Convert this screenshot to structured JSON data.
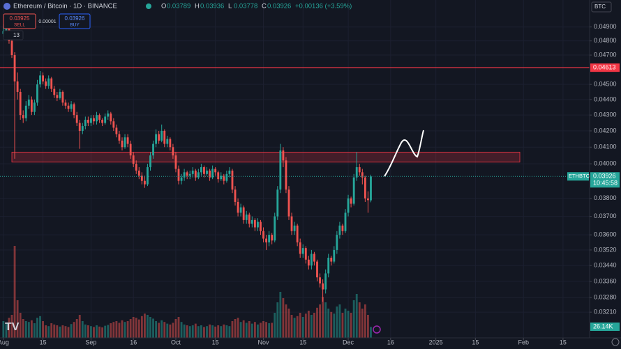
{
  "header": {
    "symbol": "Ethereum / Bitcoin · 1D · BINANCE",
    "ohlc": [
      {
        "key": "O",
        "value": "0.03789"
      },
      {
        "key": "H",
        "value": "0.03936"
      },
      {
        "key": "L",
        "value": "0.03778"
      },
      {
        "key": "C",
        "value": "0.03926"
      }
    ],
    "change": "+0.00136 (+3.59%)",
    "sell_price": "0.03925",
    "sell": "SELL",
    "spread": "0.00001",
    "buy_price": "0.03926",
    "buy": "BUY",
    "indicators": "13",
    "currency": "BTC",
    "ticker": "ETHBTC",
    "countdown": "10:45:58"
  },
  "chart_data": {
    "type": "candlestick",
    "log_scale": true,
    "grid": true,
    "up_color": "#26a69a",
    "down_color": "#ef5350",
    "ylim": [
      0.0309,
      0.051
    ],
    "yticks": [
      {
        "value": 0.049,
        "label": "0.04900"
      },
      {
        "value": 0.048,
        "label": "0.04800"
      },
      {
        "value": 0.047,
        "label": "0.04700"
      },
      {
        "value": 0.045,
        "label": "0.04500"
      },
      {
        "value": 0.044,
        "label": "0.04400"
      },
      {
        "value": 0.043,
        "label": "0.04300"
      },
      {
        "value": 0.042,
        "label": "0.04200"
      },
      {
        "value": 0.041,
        "label": "0.04100"
      },
      {
        "value": 0.04,
        "label": "0.04000"
      },
      {
        "value": 0.038,
        "label": "0.03800"
      },
      {
        "value": 0.037,
        "label": "0.03700"
      },
      {
        "value": 0.036,
        "label": "0.03600"
      },
      {
        "value": 0.0352,
        "label": "0.03520"
      },
      {
        "value": 0.0344,
        "label": "0.03440"
      },
      {
        "value": 0.0336,
        "label": "0.03360"
      },
      {
        "value": 0.0328,
        "label": "0.03280"
      },
      {
        "value": 0.0321,
        "label": "0.03210"
      }
    ],
    "xlim": [
      -1.2,
      207.4
    ],
    "xticks": [
      {
        "value": 0,
        "label": "Aug"
      },
      {
        "value": 14,
        "label": "15"
      },
      {
        "value": 31,
        "label": "Sep"
      },
      {
        "value": 46,
        "label": "16"
      },
      {
        "value": 61,
        "label": "Oct"
      },
      {
        "value": 75,
        "label": "15"
      },
      {
        "value": 92,
        "label": "Nov"
      },
      {
        "value": 106,
        "label": "15"
      },
      {
        "value": 122,
        "label": "Dec"
      },
      {
        "value": 137,
        "label": "16"
      },
      {
        "value": 153,
        "label": "2025"
      },
      {
        "value": 167,
        "label": "15"
      },
      {
        "value": 184,
        "label": "Feb"
      },
      {
        "value": 198,
        "label": "15"
      }
    ],
    "resistance_line": 0.04613,
    "resistance_color": "#f23645",
    "zone": [
      0.0401,
      0.0407
    ],
    "last_price": 0.03926,
    "candles": [
      [
        0.0485,
        0.0492,
        0.0483,
        0.0487
      ],
      [
        0.0487,
        0.0493,
        0.0485,
        0.049
      ],
      [
        0.049,
        0.0492,
        0.0478,
        0.048
      ],
      [
        0.048,
        0.0482,
        0.0468,
        0.047
      ],
      [
        0.047,
        0.0472,
        0.0403,
        0.0452
      ],
      [
        0.0452,
        0.0458,
        0.044,
        0.0445
      ],
      [
        0.0445,
        0.0447,
        0.0427,
        0.043
      ],
      [
        0.043,
        0.0433,
        0.0425,
        0.0428
      ],
      [
        0.0428,
        0.0439,
        0.0426,
        0.0436
      ],
      [
        0.0436,
        0.0443,
        0.0434,
        0.044
      ],
      [
        0.044,
        0.0442,
        0.043,
        0.0432
      ],
      [
        0.0432,
        0.044,
        0.043,
        0.0438
      ],
      [
        0.0438,
        0.0453,
        0.0436,
        0.045
      ],
      [
        0.045,
        0.0459,
        0.0448,
        0.0456
      ],
      [
        0.0456,
        0.0458,
        0.045,
        0.0452
      ],
      [
        0.0452,
        0.0454,
        0.0447,
        0.0449
      ],
      [
        0.0449,
        0.0456,
        0.0447,
        0.0454
      ],
      [
        0.0454,
        0.0455,
        0.0445,
        0.0447
      ],
      [
        0.0447,
        0.0449,
        0.0441,
        0.0443
      ],
      [
        0.0443,
        0.0445,
        0.0439,
        0.0441
      ],
      [
        0.0441,
        0.0447,
        0.044,
        0.0445
      ],
      [
        0.0445,
        0.0446,
        0.0436,
        0.0438
      ],
      [
        0.0438,
        0.044,
        0.0434,
        0.0436
      ],
      [
        0.0436,
        0.0438,
        0.0432,
        0.0434
      ],
      [
        0.0434,
        0.0439,
        0.0432,
        0.0437
      ],
      [
        0.0437,
        0.0438,
        0.0428,
        0.043
      ],
      [
        0.043,
        0.0432,
        0.0423,
        0.0425
      ],
      [
        0.0425,
        0.0427,
        0.0409,
        0.042
      ],
      [
        0.042,
        0.0425,
        0.0418,
        0.0423
      ],
      [
        0.0423,
        0.0429,
        0.0421,
        0.0427
      ],
      [
        0.0427,
        0.0429,
        0.0423,
        0.0425
      ],
      [
        0.0425,
        0.043,
        0.0423,
        0.0428
      ],
      [
        0.0428,
        0.043,
        0.0424,
        0.0426
      ],
      [
        0.0426,
        0.0432,
        0.0424,
        0.043
      ],
      [
        0.043,
        0.0431,
        0.0425,
        0.0427
      ],
      [
        0.0427,
        0.0428,
        0.0423,
        0.0425
      ],
      [
        0.0425,
        0.0431,
        0.0424,
        0.0429
      ],
      [
        0.0429,
        0.0433,
        0.0427,
        0.0431
      ],
      [
        0.0431,
        0.0432,
        0.0424,
        0.0426
      ],
      [
        0.0426,
        0.0428,
        0.042,
        0.0422
      ],
      [
        0.0422,
        0.0424,
        0.0416,
        0.0418
      ],
      [
        0.0418,
        0.042,
        0.0412,
        0.0414
      ],
      [
        0.0414,
        0.0416,
        0.0408,
        0.041
      ],
      [
        0.041,
        0.0418,
        0.0409,
        0.0416
      ],
      [
        0.0416,
        0.0418,
        0.041,
        0.0412
      ],
      [
        0.0412,
        0.0414,
        0.0403,
        0.0405
      ],
      [
        0.0405,
        0.0407,
        0.0398,
        0.04
      ],
      [
        0.04,
        0.0402,
        0.0394,
        0.0396
      ],
      [
        0.0396,
        0.0398,
        0.0391,
        0.0393
      ],
      [
        0.0393,
        0.0395,
        0.0388,
        0.039
      ],
      [
        0.039,
        0.0393,
        0.0386,
        0.0388
      ],
      [
        0.0388,
        0.04,
        0.0387,
        0.0398
      ],
      [
        0.0398,
        0.0407,
        0.0396,
        0.0405
      ],
      [
        0.0405,
        0.0414,
        0.0403,
        0.0412
      ],
      [
        0.0412,
        0.0421,
        0.041,
        0.0418
      ],
      [
        0.0418,
        0.042,
        0.0412,
        0.0414
      ],
      [
        0.0414,
        0.0424,
        0.0413,
        0.042
      ],
      [
        0.042,
        0.0421,
        0.041,
        0.0412
      ],
      [
        0.0412,
        0.0417,
        0.041,
        0.0415
      ],
      [
        0.0415,
        0.0416,
        0.0408,
        0.041
      ],
      [
        0.041,
        0.0412,
        0.0403,
        0.0405
      ],
      [
        0.0405,
        0.0407,
        0.0395,
        0.0397
      ],
      [
        0.0397,
        0.0399,
        0.0388,
        0.039
      ],
      [
        0.039,
        0.0394,
        0.0388,
        0.0392
      ],
      [
        0.0392,
        0.0397,
        0.039,
        0.0395
      ],
      [
        0.0395,
        0.0396,
        0.0391,
        0.0393
      ],
      [
        0.0393,
        0.0396,
        0.0391,
        0.0394
      ],
      [
        0.0394,
        0.0398,
        0.0392,
        0.0396
      ],
      [
        0.0396,
        0.0397,
        0.039,
        0.0392
      ],
      [
        0.0392,
        0.0397,
        0.0391,
        0.0395
      ],
      [
        0.0395,
        0.04,
        0.0393,
        0.0398
      ],
      [
        0.0398,
        0.0399,
        0.0392,
        0.0394
      ],
      [
        0.0394,
        0.0398,
        0.0393,
        0.0396
      ],
      [
        0.0396,
        0.0397,
        0.039,
        0.0392
      ],
      [
        0.0392,
        0.0399,
        0.0391,
        0.0397
      ],
      [
        0.0397,
        0.0398,
        0.0393,
        0.0395
      ],
      [
        0.0395,
        0.0396,
        0.0389,
        0.0391
      ],
      [
        0.0391,
        0.0395,
        0.039,
        0.0393
      ],
      [
        0.0393,
        0.0394,
        0.0388,
        0.039
      ],
      [
        0.039,
        0.0396,
        0.0389,
        0.0394
      ],
      [
        0.0394,
        0.0398,
        0.0392,
        0.0396
      ],
      [
        0.0396,
        0.0397,
        0.0383,
        0.0385
      ],
      [
        0.0385,
        0.0387,
        0.0376,
        0.0378
      ],
      [
        0.0378,
        0.038,
        0.037,
        0.0372
      ],
      [
        0.0372,
        0.0377,
        0.037,
        0.0375
      ],
      [
        0.0375,
        0.0376,
        0.0366,
        0.0368
      ],
      [
        0.0368,
        0.0373,
        0.0366,
        0.0371
      ],
      [
        0.0371,
        0.0372,
        0.0364,
        0.0366
      ],
      [
        0.0366,
        0.037,
        0.0364,
        0.0368
      ],
      [
        0.0368,
        0.0369,
        0.0362,
        0.0364
      ],
      [
        0.0364,
        0.0369,
        0.0362,
        0.0367
      ],
      [
        0.0367,
        0.0368,
        0.036,
        0.0362
      ],
      [
        0.0362,
        0.0364,
        0.0356,
        0.0358
      ],
      [
        0.0358,
        0.036,
        0.0352,
        0.0356
      ],
      [
        0.0356,
        0.0362,
        0.0354,
        0.036
      ],
      [
        0.036,
        0.0361,
        0.0355,
        0.0357
      ],
      [
        0.0357,
        0.0372,
        0.0356,
        0.037
      ],
      [
        0.037,
        0.0387,
        0.0368,
        0.0385
      ],
      [
        0.0385,
        0.0412,
        0.0383,
        0.0408
      ],
      [
        0.0408,
        0.041,
        0.0398,
        0.0402
      ],
      [
        0.0402,
        0.0404,
        0.0383,
        0.0385
      ],
      [
        0.0385,
        0.0387,
        0.0368,
        0.037
      ],
      [
        0.037,
        0.0372,
        0.036,
        0.0362
      ],
      [
        0.0362,
        0.0367,
        0.036,
        0.0365
      ],
      [
        0.0365,
        0.0366,
        0.0354,
        0.0356
      ],
      [
        0.0356,
        0.0358,
        0.0348,
        0.035
      ],
      [
        0.035,
        0.0355,
        0.0348,
        0.0353
      ],
      [
        0.0353,
        0.0354,
        0.0345,
        0.0347
      ],
      [
        0.0347,
        0.0349,
        0.0342,
        0.0344
      ],
      [
        0.0344,
        0.0352,
        0.0342,
        0.035
      ],
      [
        0.035,
        0.0351,
        0.0344,
        0.0346
      ],
      [
        0.0346,
        0.0347,
        0.0336,
        0.0338
      ],
      [
        0.0338,
        0.034,
        0.0333,
        0.0335
      ],
      [
        0.0335,
        0.0337,
        0.0326,
        0.0332
      ],
      [
        0.0332,
        0.0342,
        0.033,
        0.034
      ],
      [
        0.034,
        0.035,
        0.0338,
        0.0348
      ],
      [
        0.0348,
        0.0349,
        0.0344,
        0.0346
      ],
      [
        0.0346,
        0.0354,
        0.0345,
        0.0352
      ],
      [
        0.0352,
        0.0362,
        0.035,
        0.036
      ],
      [
        0.036,
        0.0367,
        0.0358,
        0.0365
      ],
      [
        0.0365,
        0.0366,
        0.036,
        0.0362
      ],
      [
        0.0362,
        0.0374,
        0.0361,
        0.0372
      ],
      [
        0.0372,
        0.0382,
        0.037,
        0.038
      ],
      [
        0.038,
        0.0381,
        0.0375,
        0.0377
      ],
      [
        0.0377,
        0.0394,
        0.0376,
        0.0392
      ],
      [
        0.0392,
        0.0407,
        0.039,
        0.0398
      ],
      [
        0.0398,
        0.04,
        0.0393,
        0.0395
      ],
      [
        0.0395,
        0.0397,
        0.0388,
        0.0392
      ],
      [
        0.0392,
        0.0393,
        0.0378,
        0.038
      ],
      [
        0.038,
        0.0384,
        0.0372,
        0.0379
      ],
      [
        0.03789,
        0.03936,
        0.03778,
        0.03926
      ]
    ],
    "vlim": [
      0,
      300
    ],
    "volume": [
      40,
      35,
      48,
      55,
      220,
      90,
      60,
      45,
      40,
      38,
      42,
      35,
      48,
      52,
      40,
      30,
      28,
      35,
      32,
      30,
      27,
      30,
      28,
      26,
      33,
      38,
      45,
      55,
      40,
      32,
      30,
      28,
      26,
      30,
      27,
      25,
      29,
      31,
      35,
      38,
      40,
      36,
      42,
      38,
      40,
      45,
      50,
      48,
      44,
      52,
      58,
      55,
      50,
      46,
      40,
      36,
      42,
      38,
      34,
      32,
      36,
      45,
      50,
      38,
      32,
      30,
      28,
      30,
      34,
      28,
      30,
      26,
      28,
      32,
      30,
      27,
      30,
      28,
      32,
      30,
      28,
      40,
      45,
      48,
      38,
      42,
      36,
      40,
      34,
      38,
      32,
      36,
      40,
      38,
      35,
      36,
      60,
      85,
      110,
      95,
      80,
      70,
      55,
      48,
      52,
      60,
      50,
      58,
      65,
      55,
      60,
      72,
      80,
      98,
      85,
      70,
      62,
      58,
      75,
      80,
      60,
      70,
      65,
      60,
      90,
      105,
      85,
      70,
      80,
      55,
      26.14
    ],
    "volume_last_label": "26.14K"
  }
}
